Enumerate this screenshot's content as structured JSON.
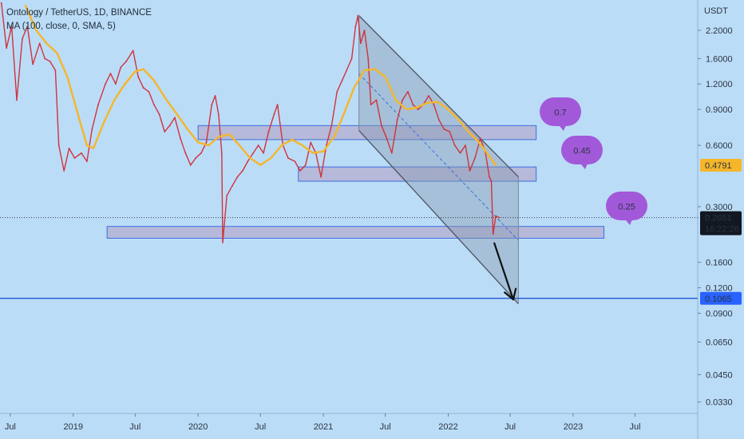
{
  "header": {
    "symbol_line": "Ontology / TetherUS, 1D, BINANCE",
    "indicator_line": "MA (100, close, 0, SMA, 5)"
  },
  "colors": {
    "background": "#bbdcf7",
    "price": "#d0333d",
    "ma": "#f5b62a",
    "channel_fill": "#8898ae",
    "zone_fill": "#b4aecf",
    "zone_border": "#3b6fe0",
    "target_line": "#2c62d8",
    "bubble": "#a259d9",
    "price_label_yellow": "#f5b62a",
    "price_label_dark": "#131722",
    "target_label": "#2962ff"
  },
  "chart_data": {
    "type": "line",
    "title": "Ontology / TetherUS, 1D, BINANCE",
    "xlabel": "",
    "ylabel": "USDT",
    "y_scale": "log",
    "ylim": [
      0.029,
      3.1
    ],
    "x_range": [
      "2018-06-01",
      "2023-12-31"
    ],
    "x_ticks": [
      {
        "label": "Jul",
        "date": "2018-07-01"
      },
      {
        "label": "2019",
        "date": "2019-01-01"
      },
      {
        "label": "Jul",
        "date": "2019-07-01"
      },
      {
        "label": "2020",
        "date": "2020-01-01"
      },
      {
        "label": "Jul",
        "date": "2020-07-01"
      },
      {
        "label": "2021",
        "date": "2021-01-01"
      },
      {
        "label": "Jul",
        "date": "2021-07-01"
      },
      {
        "label": "2022",
        "date": "2022-01-01"
      },
      {
        "label": "Jul",
        "date": "2022-07-01"
      },
      {
        "label": "2023",
        "date": "2023-01-01"
      },
      {
        "label": "Jul",
        "date": "2023-07-01"
      }
    ],
    "y_ticks": [
      {
        "label": "2.2000",
        "value": 2.2
      },
      {
        "label": "1.6000",
        "value": 1.6
      },
      {
        "label": "1.2000",
        "value": 1.2
      },
      {
        "label": "0.9000",
        "value": 0.9
      },
      {
        "label": "0.6000",
        "value": 0.6
      },
      {
        "label": "0.3000",
        "value": 0.3
      },
      {
        "label": "0.1600",
        "value": 0.16
      },
      {
        "label": "0.1200",
        "value": 0.12
      },
      {
        "label": "0.0900",
        "value": 0.09
      },
      {
        "label": "0.0650",
        "value": 0.065
      },
      {
        "label": "0.0450",
        "value": 0.045
      },
      {
        "label": "0.0330",
        "value": 0.033
      }
    ],
    "series": [
      {
        "name": "Ontology / TetherUS",
        "points": [
          [
            "2018-06-05",
            3.0
          ],
          [
            "2018-06-20",
            1.8
          ],
          [
            "2018-07-05",
            2.3
          ],
          [
            "2018-07-20",
            1.0
          ],
          [
            "2018-08-05",
            2.0
          ],
          [
            "2018-08-20",
            2.3
          ],
          [
            "2018-09-05",
            1.5
          ],
          [
            "2018-09-25",
            1.9
          ],
          [
            "2018-10-10",
            1.6
          ],
          [
            "2018-10-25",
            1.55
          ],
          [
            "2018-11-10",
            1.4
          ],
          [
            "2018-11-20",
            0.6
          ],
          [
            "2018-12-05",
            0.45
          ],
          [
            "2018-12-20",
            0.58
          ],
          [
            "2019-01-05",
            0.52
          ],
          [
            "2019-01-25",
            0.55
          ],
          [
            "2019-02-10",
            0.5
          ],
          [
            "2019-02-25",
            0.72
          ],
          [
            "2019-03-15",
            0.95
          ],
          [
            "2019-04-05",
            1.2
          ],
          [
            "2019-04-20",
            1.35
          ],
          [
            "2019-05-05",
            1.2
          ],
          [
            "2019-05-20",
            1.45
          ],
          [
            "2019-06-05",
            1.55
          ],
          [
            "2019-06-25",
            1.75
          ],
          [
            "2019-07-10",
            1.3
          ],
          [
            "2019-07-25",
            1.15
          ],
          [
            "2019-08-10",
            1.1
          ],
          [
            "2019-08-25",
            0.95
          ],
          [
            "2019-09-10",
            0.85
          ],
          [
            "2019-09-25",
            0.7
          ],
          [
            "2019-10-10",
            0.75
          ],
          [
            "2019-10-25",
            0.82
          ],
          [
            "2019-11-10",
            0.65
          ],
          [
            "2019-11-25",
            0.55
          ],
          [
            "2019-12-10",
            0.48
          ],
          [
            "2019-12-25",
            0.52
          ],
          [
            "2020-01-10",
            0.55
          ],
          [
            "2020-01-25",
            0.62
          ],
          [
            "2020-02-10",
            0.95
          ],
          [
            "2020-02-20",
            1.05
          ],
          [
            "2020-03-01",
            0.85
          ],
          [
            "2020-03-10",
            0.55
          ],
          [
            "2020-03-13",
            0.2
          ],
          [
            "2020-03-25",
            0.34
          ],
          [
            "2020-04-10",
            0.38
          ],
          [
            "2020-04-25",
            0.42
          ],
          [
            "2020-05-10",
            0.45
          ],
          [
            "2020-05-25",
            0.5
          ],
          [
            "2020-06-10",
            0.55
          ],
          [
            "2020-06-25",
            0.6
          ],
          [
            "2020-07-10",
            0.55
          ],
          [
            "2020-07-25",
            0.7
          ],
          [
            "2020-08-10",
            0.85
          ],
          [
            "2020-08-20",
            0.95
          ],
          [
            "2020-09-05",
            0.6
          ],
          [
            "2020-09-20",
            0.52
          ],
          [
            "2020-10-10",
            0.5
          ],
          [
            "2020-10-25",
            0.45
          ],
          [
            "2020-11-10",
            0.48
          ],
          [
            "2020-11-25",
            0.62
          ],
          [
            "2020-12-10",
            0.55
          ],
          [
            "2020-12-25",
            0.42
          ],
          [
            "2021-01-10",
            0.6
          ],
          [
            "2021-01-25",
            0.75
          ],
          [
            "2021-02-10",
            1.1
          ],
          [
            "2021-02-25",
            1.25
          ],
          [
            "2021-03-10",
            1.4
          ],
          [
            "2021-03-25",
            1.6
          ],
          [
            "2021-04-05",
            2.3
          ],
          [
            "2021-04-12",
            2.6
          ],
          [
            "2021-04-20",
            1.9
          ],
          [
            "2021-05-01",
            2.2
          ],
          [
            "2021-05-12",
            1.6
          ],
          [
            "2021-05-20",
            0.95
          ],
          [
            "2021-06-05",
            1.0
          ],
          [
            "2021-06-20",
            0.75
          ],
          [
            "2021-07-05",
            0.65
          ],
          [
            "2021-07-20",
            0.55
          ],
          [
            "2021-08-05",
            0.8
          ],
          [
            "2021-08-20",
            1.0
          ],
          [
            "2021-09-05",
            1.1
          ],
          [
            "2021-09-20",
            0.95
          ],
          [
            "2021-10-05",
            0.9
          ],
          [
            "2021-10-20",
            0.95
          ],
          [
            "2021-11-05",
            1.05
          ],
          [
            "2021-11-20",
            0.95
          ],
          [
            "2021-12-05",
            0.8
          ],
          [
            "2021-12-20",
            0.72
          ],
          [
            "2022-01-05",
            0.7
          ],
          [
            "2022-01-20",
            0.6
          ],
          [
            "2022-02-05",
            0.55
          ],
          [
            "2022-02-20",
            0.6
          ],
          [
            "2022-03-05",
            0.45
          ],
          [
            "2022-03-20",
            0.52
          ],
          [
            "2022-04-05",
            0.65
          ],
          [
            "2022-04-20",
            0.55
          ],
          [
            "2022-05-01",
            0.42
          ],
          [
            "2022-05-07",
            0.4
          ],
          [
            "2022-05-12",
            0.22
          ],
          [
            "2022-05-20",
            0.27
          ],
          [
            "2022-05-30",
            0.2651
          ]
        ]
      },
      {
        "name": "MA (100, close, 0, SMA, 5)",
        "points": [
          [
            "2018-08-15",
            2.9
          ],
          [
            "2018-09-15",
            2.2
          ],
          [
            "2018-10-15",
            1.9
          ],
          [
            "2018-11-15",
            1.7
          ],
          [
            "2018-12-15",
            1.3
          ],
          [
            "2019-01-15",
            0.85
          ],
          [
            "2019-02-10",
            0.6
          ],
          [
            "2019-03-01",
            0.58
          ],
          [
            "2019-04-01",
            0.78
          ],
          [
            "2019-05-01",
            1.0
          ],
          [
            "2019-06-01",
            1.2
          ],
          [
            "2019-07-01",
            1.38
          ],
          [
            "2019-07-25",
            1.42
          ],
          [
            "2019-08-25",
            1.25
          ],
          [
            "2019-10-01",
            1.0
          ],
          [
            "2019-11-01",
            0.85
          ],
          [
            "2019-12-01",
            0.72
          ],
          [
            "2020-01-01",
            0.62
          ],
          [
            "2020-02-01",
            0.6
          ],
          [
            "2020-03-01",
            0.66
          ],
          [
            "2020-04-01",
            0.68
          ],
          [
            "2020-05-01",
            0.6
          ],
          [
            "2020-06-01",
            0.52
          ],
          [
            "2020-07-01",
            0.48
          ],
          [
            "2020-08-01",
            0.52
          ],
          [
            "2020-09-01",
            0.6
          ],
          [
            "2020-10-01",
            0.64
          ],
          [
            "2020-11-01",
            0.6
          ],
          [
            "2020-12-01",
            0.55
          ],
          [
            "2021-01-01",
            0.56
          ],
          [
            "2021-02-01",
            0.66
          ],
          [
            "2021-03-01",
            0.85
          ],
          [
            "2021-04-01",
            1.15
          ],
          [
            "2021-05-01",
            1.4
          ],
          [
            "2021-06-01",
            1.42
          ],
          [
            "2021-07-01",
            1.3
          ],
          [
            "2021-08-01",
            1.0
          ],
          [
            "2021-09-01",
            0.9
          ],
          [
            "2021-10-01",
            0.92
          ],
          [
            "2021-11-01",
            0.97
          ],
          [
            "2021-12-01",
            0.98
          ],
          [
            "2022-01-01",
            0.9
          ],
          [
            "2022-02-01",
            0.8
          ],
          [
            "2022-03-01",
            0.7
          ],
          [
            "2022-04-01",
            0.62
          ],
          [
            "2022-05-01",
            0.53
          ],
          [
            "2022-05-20",
            0.4791
          ]
        ]
      }
    ],
    "annotations": {
      "channel": {
        "upper": [
          [
            "2021-04-15",
            2.6
          ],
          [
            "2022-07-25",
            0.42
          ]
        ],
        "lower": [
          [
            "2021-04-15",
            0.71
          ],
          [
            "2022-07-25",
            0.1
          ]
        ],
        "midline": [
          [
            "2021-04-15",
            1.35
          ],
          [
            "2022-07-25",
            0.205
          ]
        ]
      },
      "zones": [
        {
          "label": "0.7",
          "low": 0.64,
          "high": 0.75,
          "x_start": "2020-01-01",
          "x_end": "2022-09-15"
        },
        {
          "label": "0.45",
          "low": 0.4,
          "high": 0.47,
          "x_start": "2020-10-20",
          "x_end": "2022-09-15"
        },
        {
          "label": "0.25",
          "low": 0.21,
          "high": 0.24,
          "x_start": "2019-04-10",
          "x_end": "2023-04-01"
        }
      ],
      "projection_arrow": {
        "from": [
          "2022-05-15",
          0.2
        ],
        "to": [
          "2022-07-10",
          0.105
        ]
      },
      "target_line": {
        "value": 0.1065,
        "label": "0.1065"
      },
      "last_price": {
        "value": 0.2651,
        "label": "0.2651",
        "countdown": "16:22:26"
      },
      "ma_last": {
        "value": 0.4791,
        "label": "0.4791"
      }
    }
  }
}
